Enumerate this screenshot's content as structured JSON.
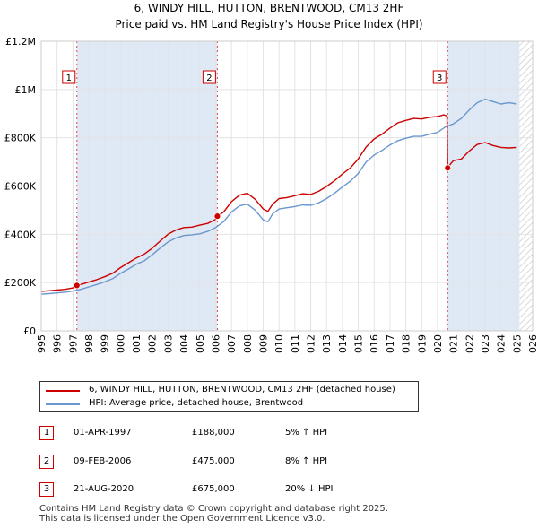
{
  "title_line1": "6, WINDY HILL, HUTTON, BRENTWOOD, CM13 2HF",
  "title_line2": "Price paid vs. HM Land Registry's House Price Index (HPI)",
  "chart_data": {
    "type": "line",
    "ylim": [
      0,
      1200000
    ],
    "xlim": [
      1995,
      2026
    ],
    "y_ticks": [
      0,
      200000,
      400000,
      600000,
      800000,
      1000000,
      1200000
    ],
    "y_tick_labels": [
      "£0",
      "£200K",
      "£400K",
      "£600K",
      "£800K",
      "£1M",
      "£1.2M"
    ],
    "x_ticks": [
      1995,
      1996,
      1997,
      1998,
      1999,
      2000,
      2001,
      2002,
      2003,
      2004,
      2005,
      2006,
      2007,
      2008,
      2009,
      2010,
      2011,
      2012,
      2013,
      2014,
      2015,
      2016,
      2017,
      2018,
      2019,
      2020,
      2021,
      2022,
      2023,
      2024,
      2025,
      2026
    ],
    "shaded_spans": [
      [
        1997.25,
        2006.11
      ],
      [
        2020.64,
        2025.17
      ]
    ],
    "hatched_from": 2025.17,
    "series": [
      {
        "name": "6, WINDY HILL, HUTTON, BRENTWOOD, CM13 2HF (detached house)",
        "color": "#cc0000",
        "x": [
          1995.0,
          1995.5,
          1996.0,
          1996.5,
          1997.0,
          1997.25,
          1997.5,
          1998.0,
          1998.5,
          1999.0,
          1999.5,
          2000.0,
          2000.5,
          2001.0,
          2001.5,
          2002.0,
          2002.5,
          2003.0,
          2003.5,
          2004.0,
          2004.5,
          2005.0,
          2005.5,
          2006.0,
          2006.11,
          2006.5,
          2007.0,
          2007.5,
          2008.0,
          2008.5,
          2009.0,
          2009.3,
          2009.6,
          2010.0,
          2010.5,
          2011.0,
          2011.5,
          2012.0,
          2012.5,
          2013.0,
          2013.5,
          2014.0,
          2014.5,
          2015.0,
          2015.5,
          2016.0,
          2016.5,
          2017.0,
          2017.5,
          2018.0,
          2018.5,
          2019.0,
          2019.5,
          2020.0,
          2020.4,
          2020.6,
          2020.64,
          2020.8,
          2021.0,
          2021.5,
          2022.0,
          2022.5,
          2023.0,
          2023.5,
          2024.0,
          2024.5,
          2025.0
        ],
        "y": [
          164000,
          166000,
          169000,
          172000,
          178000,
          188000,
          192000,
          202000,
          212000,
          224000,
          238000,
          262000,
          282000,
          302000,
          318000,
          342000,
          372000,
          400000,
          418000,
          428000,
          430000,
          438000,
          445000,
          462000,
          475000,
          492000,
          535000,
          562000,
          570000,
          545000,
          505000,
          495000,
          525000,
          548000,
          552000,
          560000,
          568000,
          565000,
          578000,
          598000,
          622000,
          650000,
          675000,
          712000,
          762000,
          795000,
          815000,
          840000,
          862000,
          872000,
          880000,
          878000,
          885000,
          888000,
          895000,
          890000,
          675000,
          690000,
          705000,
          712000,
          745000,
          772000,
          780000,
          768000,
          760000,
          758000,
          760000
        ]
      },
      {
        "name": "HPI: Average price, detached house, Brentwood",
        "color": "#6a97cf",
        "x": [
          1995.0,
          1995.5,
          1996.0,
          1996.5,
          1997.0,
          1997.5,
          1998.0,
          1998.5,
          1999.0,
          1999.5,
          2000.0,
          2000.5,
          2001.0,
          2001.5,
          2002.0,
          2002.5,
          2003.0,
          2003.5,
          2004.0,
          2004.5,
          2005.0,
          2005.5,
          2006.0,
          2006.5,
          2007.0,
          2007.5,
          2008.0,
          2008.5,
          2009.0,
          2009.3,
          2009.6,
          2010.0,
          2010.5,
          2011.0,
          2011.5,
          2012.0,
          2012.5,
          2013.0,
          2013.5,
          2014.0,
          2014.5,
          2015.0,
          2015.5,
          2016.0,
          2016.5,
          2017.0,
          2017.5,
          2018.0,
          2018.5,
          2019.0,
          2019.5,
          2020.0,
          2020.5,
          2021.0,
          2021.5,
          2022.0,
          2022.5,
          2023.0,
          2023.5,
          2024.0,
          2024.5,
          2025.0
        ],
        "y": [
          152000,
          154000,
          157000,
          160000,
          165000,
          172000,
          182000,
          192000,
          203000,
          216000,
          238000,
          256000,
          276000,
          290000,
          315000,
          343000,
          368000,
          385000,
          395000,
          398000,
          402000,
          412000,
          428000,
          452000,
          492000,
          518000,
          525000,
          500000,
          460000,
          452000,
          485000,
          505000,
          510000,
          515000,
          522000,
          520000,
          530000,
          548000,
          570000,
          596000,
          620000,
          652000,
          700000,
          728000,
          748000,
          770000,
          788000,
          798000,
          806000,
          806000,
          815000,
          822000,
          845000,
          858000,
          880000,
          915000,
          945000,
          960000,
          950000,
          940000,
          945000,
          940000
        ]
      }
    ],
    "sales": [
      {
        "label": "1",
        "x": 1997.25,
        "y": 188000
      },
      {
        "label": "2",
        "x": 2006.11,
        "y": 475000
      },
      {
        "label": "3",
        "x": 2020.64,
        "y": 675000
      }
    ]
  },
  "legend": {
    "property_label": "6, WINDY HILL, HUTTON, BRENTWOOD, CM13 2HF (detached house)",
    "hpi_label": "HPI: Average price, detached house, Brentwood"
  },
  "sales_table": [
    {
      "num": "1",
      "date": "01-APR-1997",
      "price": "£188,000",
      "hpi": "5% ↑ HPI"
    },
    {
      "num": "2",
      "date": "09-FEB-2006",
      "price": "£475,000",
      "hpi": "8% ↑ HPI"
    },
    {
      "num": "3",
      "date": "21-AUG-2020",
      "price": "£675,000",
      "hpi": "20% ↓ HPI"
    }
  ],
  "footer": {
    "line1": "Contains HM Land Registry data © Crown copyright and database right 2025.",
    "line2": "This data is licensed under the Open Government Licence v3.0."
  }
}
